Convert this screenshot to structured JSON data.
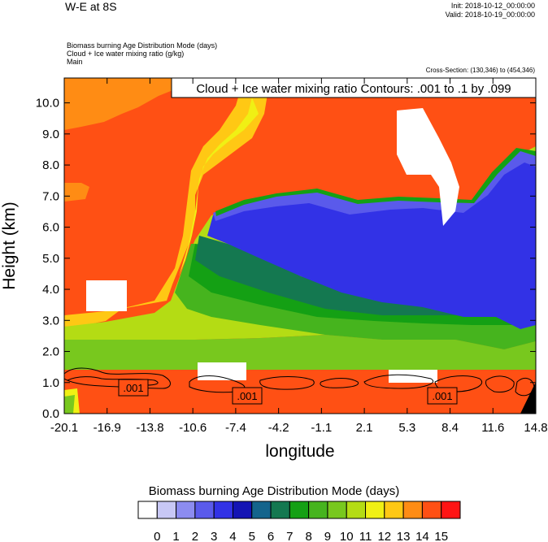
{
  "header": {
    "title": "W-E at 8S",
    "init": "Init: 2018-10-12_00:00:00",
    "valid": "Valid: 2018-10-19_00:00:00",
    "field1": "Biomass burning Age Distribution Mode   (days)",
    "field2": "Cloud + Ice water mixing ratio   (g/kg)",
    "field3": "Main",
    "cross_section": "Cross-Section: (130,346) to (454,346)"
  },
  "chart_data": {
    "type": "heatmap",
    "title": "W-E at 8S",
    "xlabel": "longitude",
    "ylabel": "Height (km)",
    "xlim": [
      -20.1,
      14.8
    ],
    "ylim": [
      0.0,
      10.8
    ],
    "x_ticks": [
      "-20.1",
      "-16.9",
      "-13.8",
      "-10.6",
      "-7.4",
      "-4.2",
      "-1.1",
      "2.1",
      "5.3",
      "8.4",
      "11.6",
      "14.8"
    ],
    "y_ticks": [
      "0.0",
      "1.0",
      "2.0",
      "3.0",
      "4.0",
      "5.0",
      "6.0",
      "7.0",
      "8.0",
      "9.0",
      "10.0"
    ],
    "contour_label": "Cloud + Ice water mixing ratio Contours: .001 to .1 by .099",
    "contour_values": [
      ".001",
      ".001",
      ".001"
    ],
    "colorbar": {
      "title": "Biomass burning Age Distribution Mode  (days)",
      "labels": [
        "0",
        "1",
        "2",
        "3",
        "4",
        "5",
        "6",
        "7",
        "8",
        "9",
        "10",
        "11",
        "12",
        "13",
        "14",
        "15"
      ],
      "colors": [
        "#ffffff",
        "#c8c8f5",
        "#8c8cf0",
        "#5a5aeb",
        "#3232e6",
        "#1414b4",
        "#14648c",
        "#147850",
        "#14a014",
        "#46b41e",
        "#78c81e",
        "#b4dc14",
        "#f0f014",
        "#ffc814",
        "#ff8c14",
        "#ff5014",
        "#ff1414"
      ]
    }
  }
}
